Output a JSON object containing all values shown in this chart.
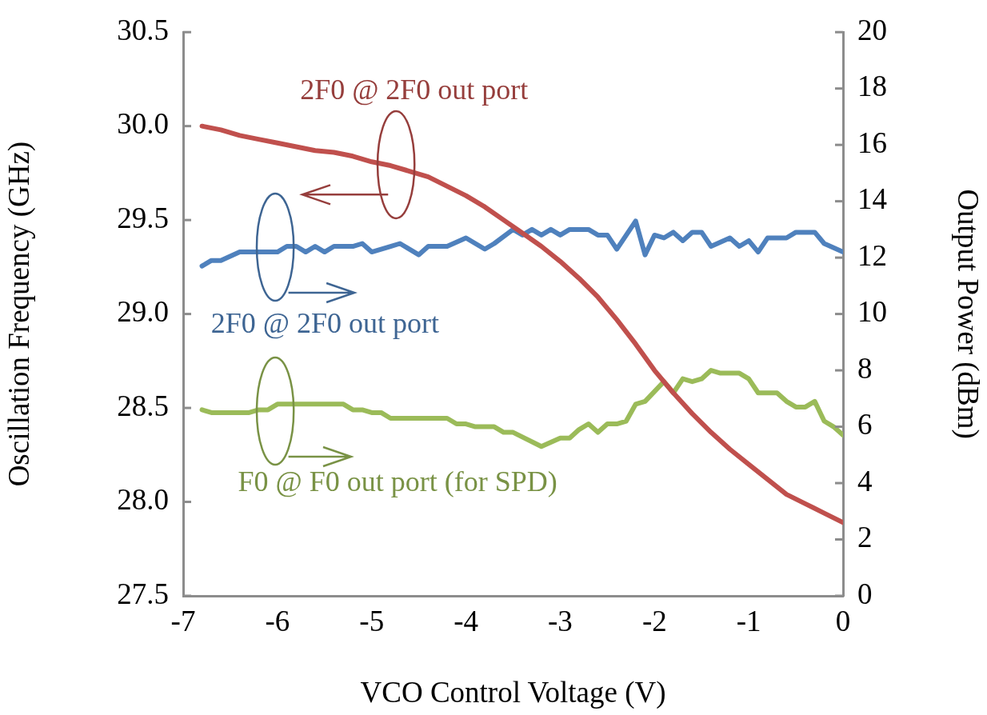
{
  "chart_data": {
    "type": "line",
    "xlabel": "VCO Control Voltage (V)",
    "ylabel": "Oscillation Frequency (GHz)",
    "y2label": "Output Power (dBm)",
    "xlim": [
      -7,
      0
    ],
    "xticks": [
      -7,
      -6,
      -5,
      -4,
      -3,
      -2,
      -1,
      0
    ],
    "ylim": [
      27.5,
      30.5
    ],
    "yticks": [
      {
        "value": 27.5,
        "label": "27.5"
      },
      {
        "value": 28,
        "label": "28.0"
      },
      {
        "value": 28.5,
        "label": "28.5"
      },
      {
        "value": 29,
        "label": "29.0"
      },
      {
        "value": 29.5,
        "label": "29.5"
      },
      {
        "value": 30,
        "label": "30.0"
      },
      {
        "value": 30.5,
        "label": "30.5"
      }
    ],
    "y2lim": [
      0,
      20
    ],
    "y2ticks": [
      0,
      2,
      4,
      6,
      8,
      10,
      12,
      14,
      16,
      18,
      20
    ],
    "grid": false,
    "legend": false,
    "marker": "none",
    "line_style": "solid",
    "series": [
      {
        "name": "2F0 @ 2F0 out port",
        "color": "#c0504d",
        "x": [
          -6.8,
          -6.6,
          -6.4,
          -6.2,
          -6,
          -5.8,
          -5.6,
          -5.4,
          -5.2,
          -5,
          -4.8,
          -4.6,
          -4.4,
          -4.2,
          -4,
          -3.8,
          -3.6,
          -3.4,
          -3.2,
          -3,
          -2.8,
          -2.6,
          -2.4,
          -2.2,
          -2,
          -1.8,
          -1.6,
          -1.4,
          -1.2,
          -1,
          -0.8,
          -0.6,
          -0.4,
          -0.2,
          0
        ],
        "values": [
          30.0,
          29.98,
          29.95,
          29.93,
          29.91,
          29.89,
          29.87,
          29.86,
          29.84,
          29.81,
          29.79,
          29.76,
          29.73,
          29.68,
          29.63,
          29.57,
          29.5,
          29.43,
          29.36,
          29.28,
          29.19,
          29.09,
          28.97,
          28.84,
          28.7,
          28.58,
          28.47,
          28.37,
          28.28,
          28.2,
          28.12,
          28.04,
          27.99,
          27.94,
          27.89
        ]
      },
      {
        "name": "2F0 @ 2F0 out port",
        "color": "#4f81bd",
        "axis": "y2",
        "x": [
          -6.8,
          -6.7,
          -6.6,
          -6.4,
          -6,
          -5.9,
          -5.8,
          -5.7,
          -5.6,
          -5.5,
          -5.4,
          -5.2,
          -5.1,
          -5,
          -4.8,
          -4.7,
          -4.5,
          -4.4,
          -4.2,
          -4,
          -3.8,
          -3.7,
          -3.5,
          -3.4,
          -3.3,
          -3.2,
          -3.1,
          -3,
          -2.9,
          -2.7,
          -2.6,
          -2.5,
          -2.4,
          -2.2,
          -2.1,
          -2,
          -1.9,
          -1.8,
          -1.7,
          -1.6,
          -1.5,
          -1.4,
          -1.2,
          -1.1,
          -1,
          -0.9,
          -0.8,
          -0.6,
          -0.5,
          -0.3,
          -0.2,
          0
        ],
        "values": [
          11.7,
          11.9,
          11.9,
          12.2,
          12.2,
          12.4,
          12.4,
          12.2,
          12.4,
          12.2,
          12.4,
          12.4,
          12.5,
          12.2,
          12.4,
          12.5,
          12.1,
          12.4,
          12.4,
          12.7,
          12.3,
          12.5,
          13.0,
          12.8,
          13.0,
          12.8,
          13.0,
          12.8,
          13.0,
          13.0,
          12.8,
          12.8,
          12.3,
          13.3,
          12.1,
          12.8,
          12.7,
          12.9,
          12.6,
          12.9,
          12.9,
          12.4,
          12.7,
          12.4,
          12.6,
          12.2,
          12.7,
          12.7,
          12.9,
          12.9,
          12.5,
          12.2
        ]
      },
      {
        "name": "F0 @ F0 out port (for SPD)",
        "color": "#9bbb59",
        "axis": "y2",
        "x": [
          -6.8,
          -6.7,
          -6.3,
          -6.2,
          -6.1,
          -6,
          -5.3,
          -5.2,
          -5.1,
          -5,
          -4.9,
          -4.8,
          -4.2,
          -4.1,
          -4,
          -3.9,
          -3.7,
          -3.6,
          -3.5,
          -3.2,
          -3,
          -2.9,
          -2.8,
          -2.7,
          -2.6,
          -2.5,
          -2.4,
          -2.3,
          -2.2,
          -2.1,
          -1.9,
          -1.8,
          -1.7,
          -1.6,
          -1.5,
          -1.4,
          -1.3,
          -1.1,
          -1,
          -0.9,
          -0.7,
          -0.6,
          -0.5,
          -0.4,
          -0.3,
          -0.2,
          -0.1,
          0
        ],
        "values": [
          6.6,
          6.5,
          6.5,
          6.6,
          6.6,
          6.8,
          6.8,
          6.6,
          6.6,
          6.5,
          6.5,
          6.3,
          6.3,
          6.1,
          6.1,
          6.0,
          6.0,
          5.8,
          5.8,
          5.3,
          5.6,
          5.6,
          5.9,
          6.1,
          5.8,
          6.1,
          6.1,
          6.2,
          6.8,
          6.9,
          7.6,
          7.2,
          7.7,
          7.6,
          7.7,
          8.0,
          7.9,
          7.9,
          7.7,
          7.2,
          7.2,
          6.9,
          6.7,
          6.7,
          6.9,
          6.2,
          6.0,
          5.7
        ]
      }
    ]
  }
}
